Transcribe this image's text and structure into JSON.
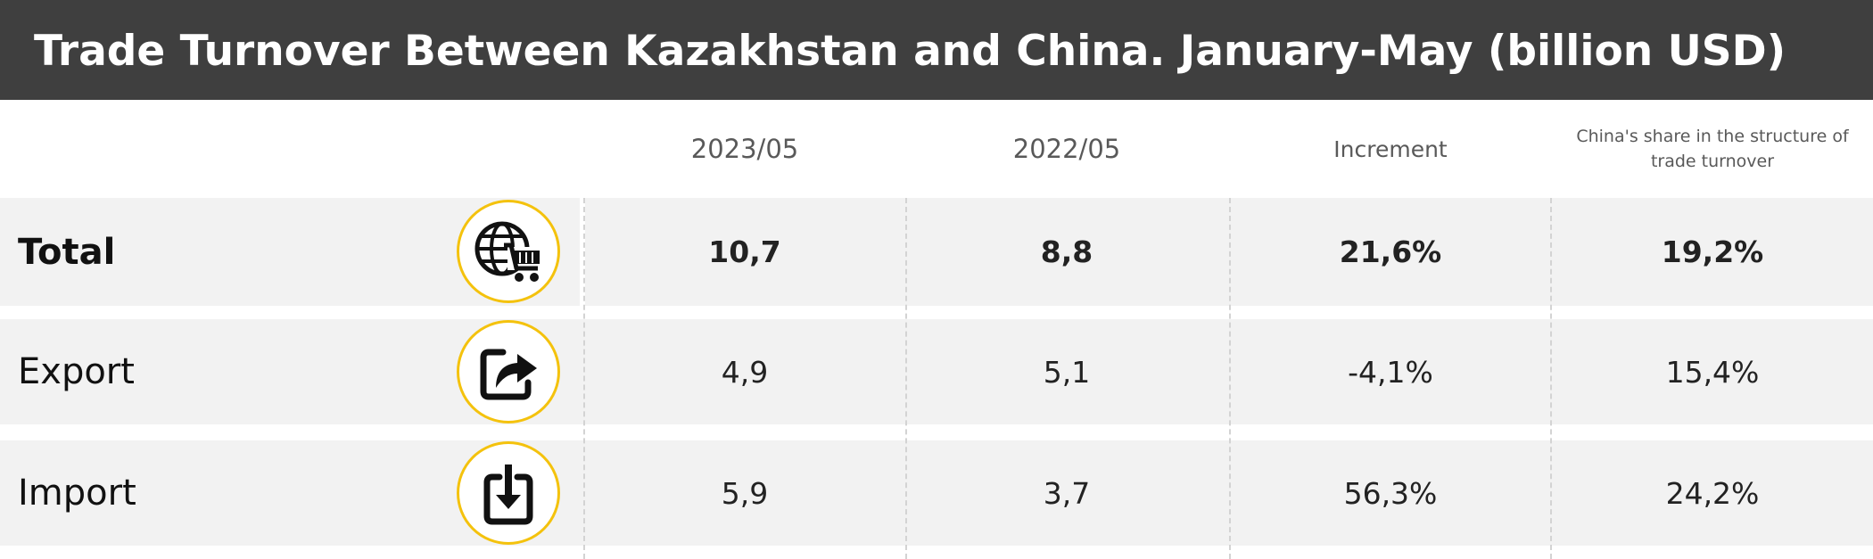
{
  "title": "Trade Turnover Between Kazakhstan and China. January-May (billion USD)",
  "chart_data": {
    "type": "table",
    "columns": [
      "2023/05",
      "2022/05",
      "Increment",
      "China's share in the structure of trade turnover"
    ],
    "rows": [
      {
        "label": "Total",
        "icon": "globe-cart-icon",
        "values": [
          "10,7",
          "8,8",
          "21,6%",
          "19,2%"
        ]
      },
      {
        "label": "Export",
        "icon": "export-arrow-icon",
        "values": [
          "4,9",
          "5,1",
          "-4,1%",
          "15,4%"
        ]
      },
      {
        "label": "Import",
        "icon": "import-arrow-icon",
        "values": [
          "5,9",
          "3,7",
          "56,3%",
          "24,2%"
        ]
      }
    ]
  },
  "colors": {
    "title_bg": "#3f3f3f",
    "row_bg": "#f2f2f2",
    "icon_ring": "#f4c20d"
  }
}
